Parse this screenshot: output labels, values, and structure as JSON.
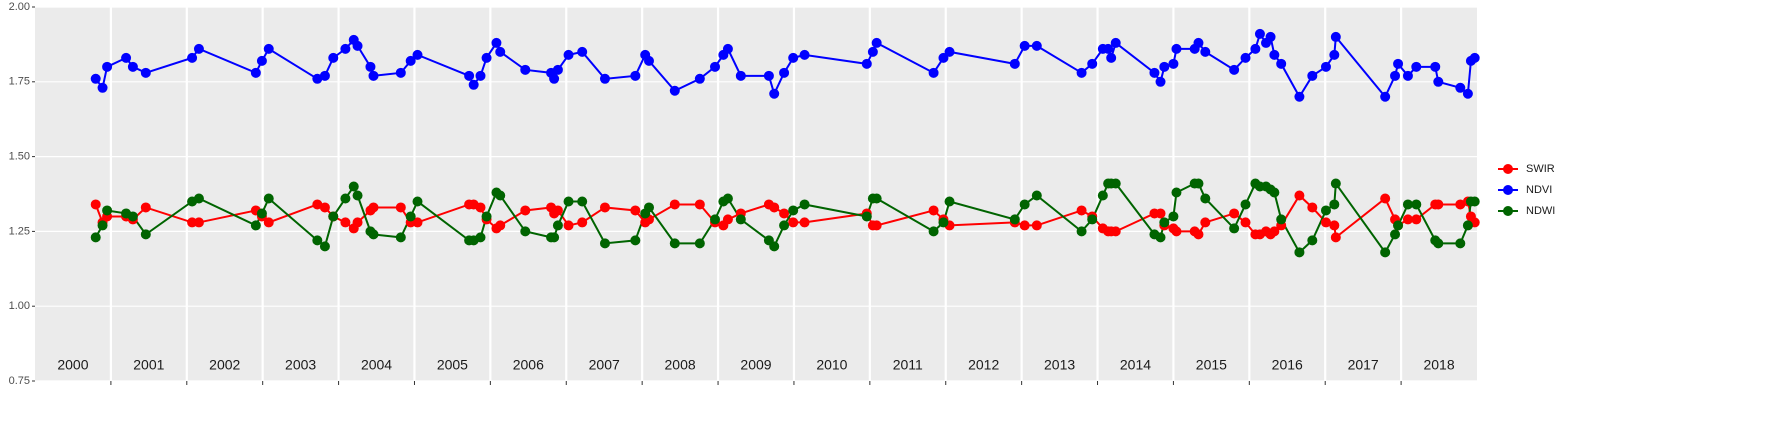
{
  "chart_data": {
    "type": "line",
    "xlim": [
      2000,
      2019
    ],
    "ylim": [
      0.75,
      2.0
    ],
    "xticks": [
      2001,
      2002,
      2003,
      2004,
      2005,
      2006,
      2007,
      2008,
      2009,
      2010,
      2011,
      2012,
      2013,
      2014,
      2015,
      2016,
      2017,
      2018
    ],
    "yticks": [
      0.75,
      {
        "value": 1.0,
        "label": "1.00"
      },
      1.25,
      {
        "value": 1.5,
        "label": "1.50"
      },
      1.75,
      {
        "value": 2.0,
        "label": "2.00"
      }
    ],
    "year_labels": [
      {
        "value": 2000.5,
        "label": "2000"
      },
      {
        "value": 2001.5,
        "label": "2001"
      },
      {
        "value": 2002.5,
        "label": "2002"
      },
      {
        "value": 2003.5,
        "label": "2003"
      },
      {
        "value": 2004.5,
        "label": "2004"
      },
      {
        "value": 2005.5,
        "label": "2005"
      },
      {
        "value": 2006.5,
        "label": "2006"
      },
      {
        "value": 2007.5,
        "label": "2007"
      },
      {
        "value": 2008.5,
        "label": "2008"
      },
      {
        "value": 2009.5,
        "label": "2009"
      },
      {
        "value": 2010.5,
        "label": "2010"
      },
      {
        "value": 2011.5,
        "label": "2011"
      },
      {
        "value": 2012.5,
        "label": "2012"
      },
      {
        "value": 2013.5,
        "label": "2013"
      },
      {
        "value": 2014.5,
        "label": "2014"
      },
      {
        "value": 2015.5,
        "label": "2015"
      },
      {
        "value": 2016.5,
        "label": "2016"
      },
      {
        "value": 2017.5,
        "label": "2017"
      },
      {
        "value": 2018.5,
        "label": "2018"
      }
    ],
    "grid": true,
    "legend": "right",
    "x": [
      2000.8,
      2000.89,
      2000.95,
      2001.2,
      2001.29,
      2001.46,
      2002.07,
      2002.16,
      2002.91,
      2002.99,
      2003.08,
      2003.72,
      2003.82,
      2003.93,
      2004.09,
      2004.2,
      2004.25,
      2004.42,
      2004.46,
      2004.82,
      2004.95,
      2005.04,
      2005.72,
      2005.78,
      2005.87,
      2005.95,
      2006.08,
      2006.13,
      2006.46,
      2006.8,
      2006.84,
      2006.89,
      2007.03,
      2007.21,
      2007.51,
      2007.91,
      2008.04,
      2008.09,
      2008.43,
      2008.76,
      2008.96,
      2009.07,
      2009.13,
      2009.3,
      2009.67,
      2009.74,
      2009.87,
      2009.99,
      2010.14,
      2010.96,
      2011.04,
      2011.09,
      2011.84,
      2011.97,
      2012.05,
      2012.91,
      2013.04,
      2013.2,
      2013.79,
      2013.93,
      2014.07,
      2014.14,
      2014.18,
      2014.24,
      2014.75,
      2014.83,
      2014.88,
      2015.0,
      2015.04,
      2015.28,
      2015.33,
      2015.42,
      2015.8,
      2015.95,
      2016.08,
      2016.14,
      2016.22,
      2016.28,
      2016.33,
      2016.42,
      2016.66,
      2016.83,
      2017.01,
      2017.12,
      2017.14,
      2017.79,
      2017.92,
      2017.96,
      2018.09,
      2018.2,
      2018.45,
      2018.49,
      2018.78,
      2018.88,
      2018.92,
      2018.97
    ],
    "series": [
      {
        "name": "SWIR",
        "color": "#ff0000",
        "values": [
          1.34,
          1.28,
          1.3,
          1.3,
          1.29,
          1.33,
          1.28,
          1.28,
          1.32,
          1.3,
          1.28,
          1.34,
          1.33,
          1.3,
          1.28,
          1.26,
          1.28,
          1.32,
          1.33,
          1.33,
          1.28,
          1.28,
          1.34,
          1.34,
          1.33,
          1.29,
          1.26,
          1.27,
          1.32,
          1.33,
          1.31,
          1.32,
          1.27,
          1.28,
          1.33,
          1.32,
          1.28,
          1.29,
          1.34,
          1.34,
          1.28,
          1.27,
          1.29,
          1.31,
          1.34,
          1.33,
          1.31,
          1.28,
          1.28,
          1.31,
          1.27,
          1.27,
          1.32,
          1.29,
          1.27,
          1.28,
          1.27,
          1.27,
          1.32,
          1.3,
          1.26,
          1.25,
          1.25,
          1.25,
          1.31,
          1.31,
          1.27,
          1.26,
          1.25,
          1.25,
          1.24,
          1.28,
          1.31,
          1.28,
          1.24,
          1.24,
          1.25,
          1.24,
          1.25,
          1.27,
          1.37,
          1.33,
          1.28,
          1.27,
          1.23,
          1.36,
          1.29,
          1.27,
          1.29,
          1.29,
          1.34,
          1.34,
          1.34,
          1.35,
          1.3,
          1.28
        ]
      },
      {
        "name": "NDVI",
        "color": "#0000ff",
        "values": [
          1.76,
          1.73,
          1.8,
          1.83,
          1.8,
          1.78,
          1.83,
          1.86,
          1.78,
          1.82,
          1.86,
          1.76,
          1.77,
          1.83,
          1.86,
          1.89,
          1.87,
          1.8,
          1.77,
          1.78,
          1.82,
          1.84,
          1.77,
          1.74,
          1.77,
          1.83,
          1.88,
          1.85,
          1.79,
          1.78,
          1.76,
          1.79,
          1.84,
          1.85,
          1.76,
          1.77,
          1.84,
          1.82,
          1.72,
          1.76,
          1.8,
          1.84,
          1.86,
          1.77,
          1.77,
          1.71,
          1.78,
          1.83,
          1.84,
          1.81,
          1.85,
          1.88,
          1.78,
          1.83,
          1.85,
          1.81,
          1.87,
          1.87,
          1.78,
          1.81,
          1.86,
          1.86,
          1.83,
          1.88,
          1.78,
          1.75,
          1.8,
          1.81,
          1.86,
          1.86,
          1.88,
          1.85,
          1.79,
          1.83,
          1.86,
          1.91,
          1.88,
          1.9,
          1.84,
          1.81,
          1.7,
          1.77,
          1.8,
          1.84,
          1.9,
          1.7,
          1.77,
          1.81,
          1.77,
          1.8,
          1.8,
          1.75,
          1.73,
          1.71,
          1.82,
          1.83
        ]
      },
      {
        "name": "NDWI",
        "color": "#006400",
        "values": [
          1.23,
          1.27,
          1.32,
          1.31,
          1.3,
          1.24,
          1.35,
          1.36,
          1.27,
          1.31,
          1.36,
          1.22,
          1.2,
          1.3,
          1.36,
          1.4,
          1.37,
          1.25,
          1.24,
          1.23,
          1.3,
          1.35,
          1.22,
          1.22,
          1.23,
          1.3,
          1.38,
          1.37,
          1.25,
          1.23,
          1.23,
          1.27,
          1.35,
          1.35,
          1.21,
          1.22,
          1.31,
          1.33,
          1.21,
          1.21,
          1.29,
          1.35,
          1.36,
          1.29,
          1.22,
          1.2,
          1.27,
          1.32,
          1.34,
          1.3,
          1.36,
          1.36,
          1.25,
          1.28,
          1.35,
          1.29,
          1.34,
          1.37,
          1.25,
          1.29,
          1.37,
          1.41,
          1.41,
          1.41,
          1.24,
          1.23,
          1.28,
          1.3,
          1.38,
          1.41,
          1.41,
          1.36,
          1.26,
          1.34,
          1.41,
          1.4,
          1.4,
          1.39,
          1.38,
          1.29,
          1.18,
          1.22,
          1.32,
          1.34,
          1.41,
          1.18,
          1.24,
          1.27,
          1.34,
          1.34,
          1.22,
          1.21,
          1.21,
          1.27,
          1.35,
          1.35
        ]
      }
    ]
  }
}
